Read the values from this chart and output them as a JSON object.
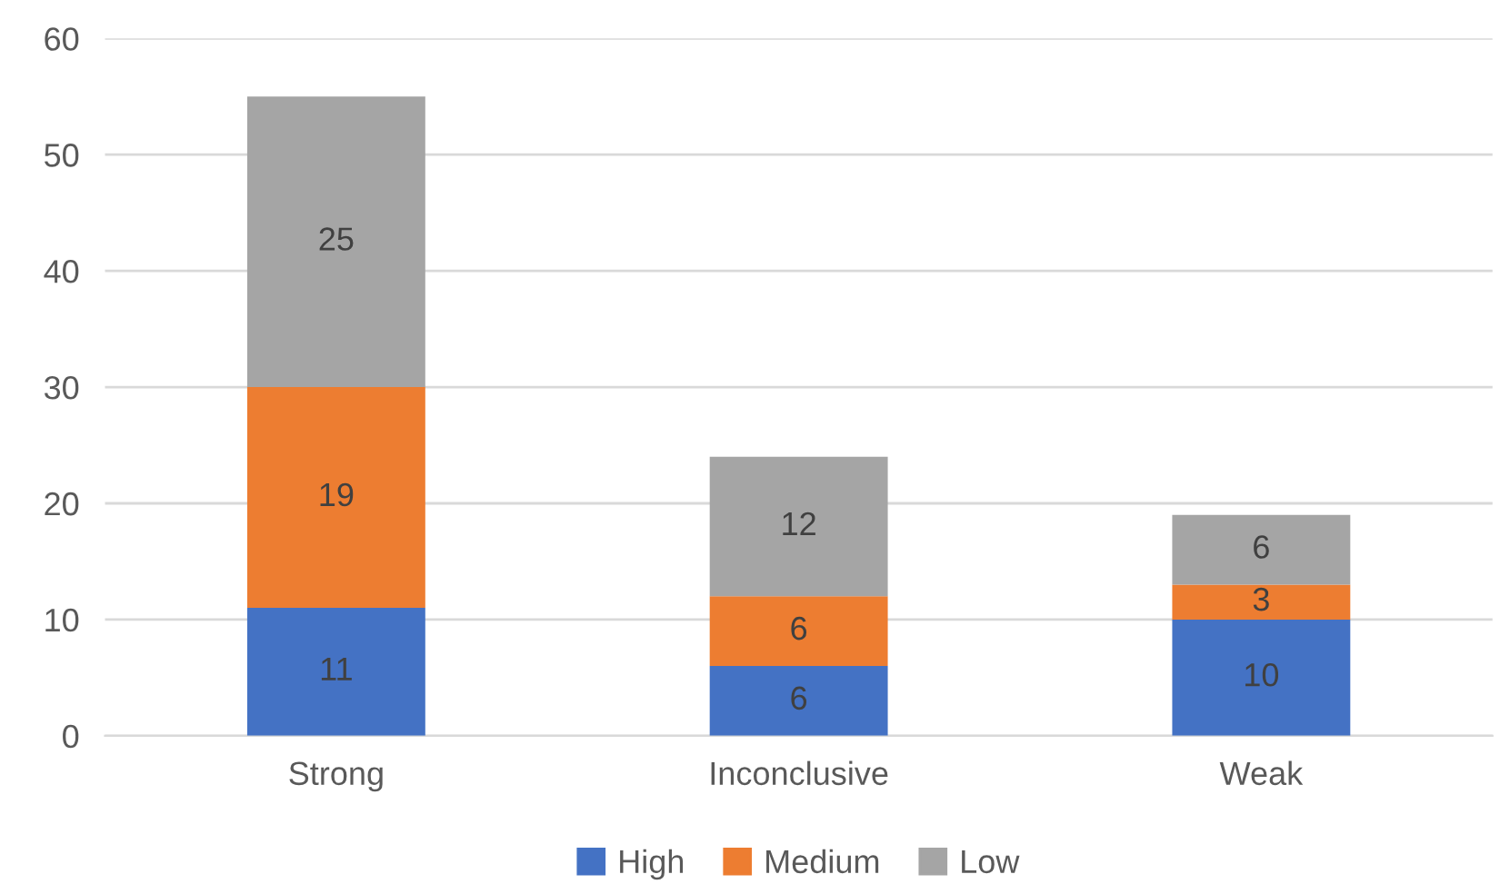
{
  "chart_data": {
    "type": "bar",
    "stacked": true,
    "categories": [
      "Strong",
      "Inconclusive",
      "Weak"
    ],
    "series": [
      {
        "name": "High",
        "color": "#4472c4",
        "values": [
          11,
          6,
          10
        ]
      },
      {
        "name": "Medium",
        "color": "#ed7d31",
        "values": [
          19,
          6,
          3
        ]
      },
      {
        "name": "Low",
        "color": "#a5a5a5",
        "values": [
          25,
          12,
          6
        ]
      }
    ],
    "ylim": [
      0,
      60
    ],
    "yticks": [
      0,
      10,
      20,
      30,
      40,
      50,
      60
    ],
    "grid": "y",
    "legend": "bottom",
    "data_labels": true
  }
}
